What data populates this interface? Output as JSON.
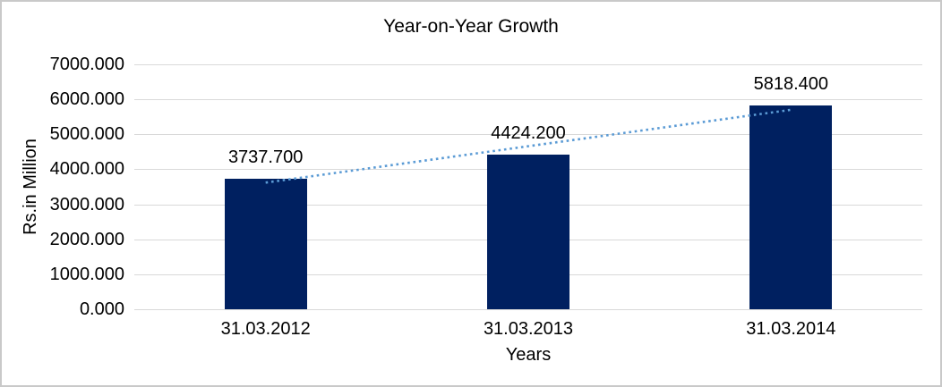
{
  "chart_data": {
    "type": "bar",
    "title": "Year-on-Year Growth",
    "xlabel": "Years",
    "ylabel": "Rs.in Million",
    "categories": [
      "31.03.2012",
      "31.03.2013",
      "31.03.2014"
    ],
    "values": [
      3737.7,
      4424.2,
      5818.4
    ],
    "data_labels": [
      "3737.700",
      "4424.200",
      "5818.400"
    ],
    "ylim": [
      0,
      7000
    ],
    "ytick_step": 1000,
    "ytick_labels": [
      "0.000",
      "1000.000",
      "2000.000",
      "3000.000",
      "4000.000",
      "5000.000",
      "6000.000",
      "7000.000"
    ],
    "grid": true,
    "legend": "none",
    "trendline": {
      "type": "linear",
      "style": "dotted",
      "color": "#5b9bd5"
    },
    "colors": {
      "bar": "#002060",
      "gridline": "#d9d9d9",
      "text": "#000000",
      "frame_border": "#c9c9c9",
      "background": "#ffffff"
    }
  }
}
